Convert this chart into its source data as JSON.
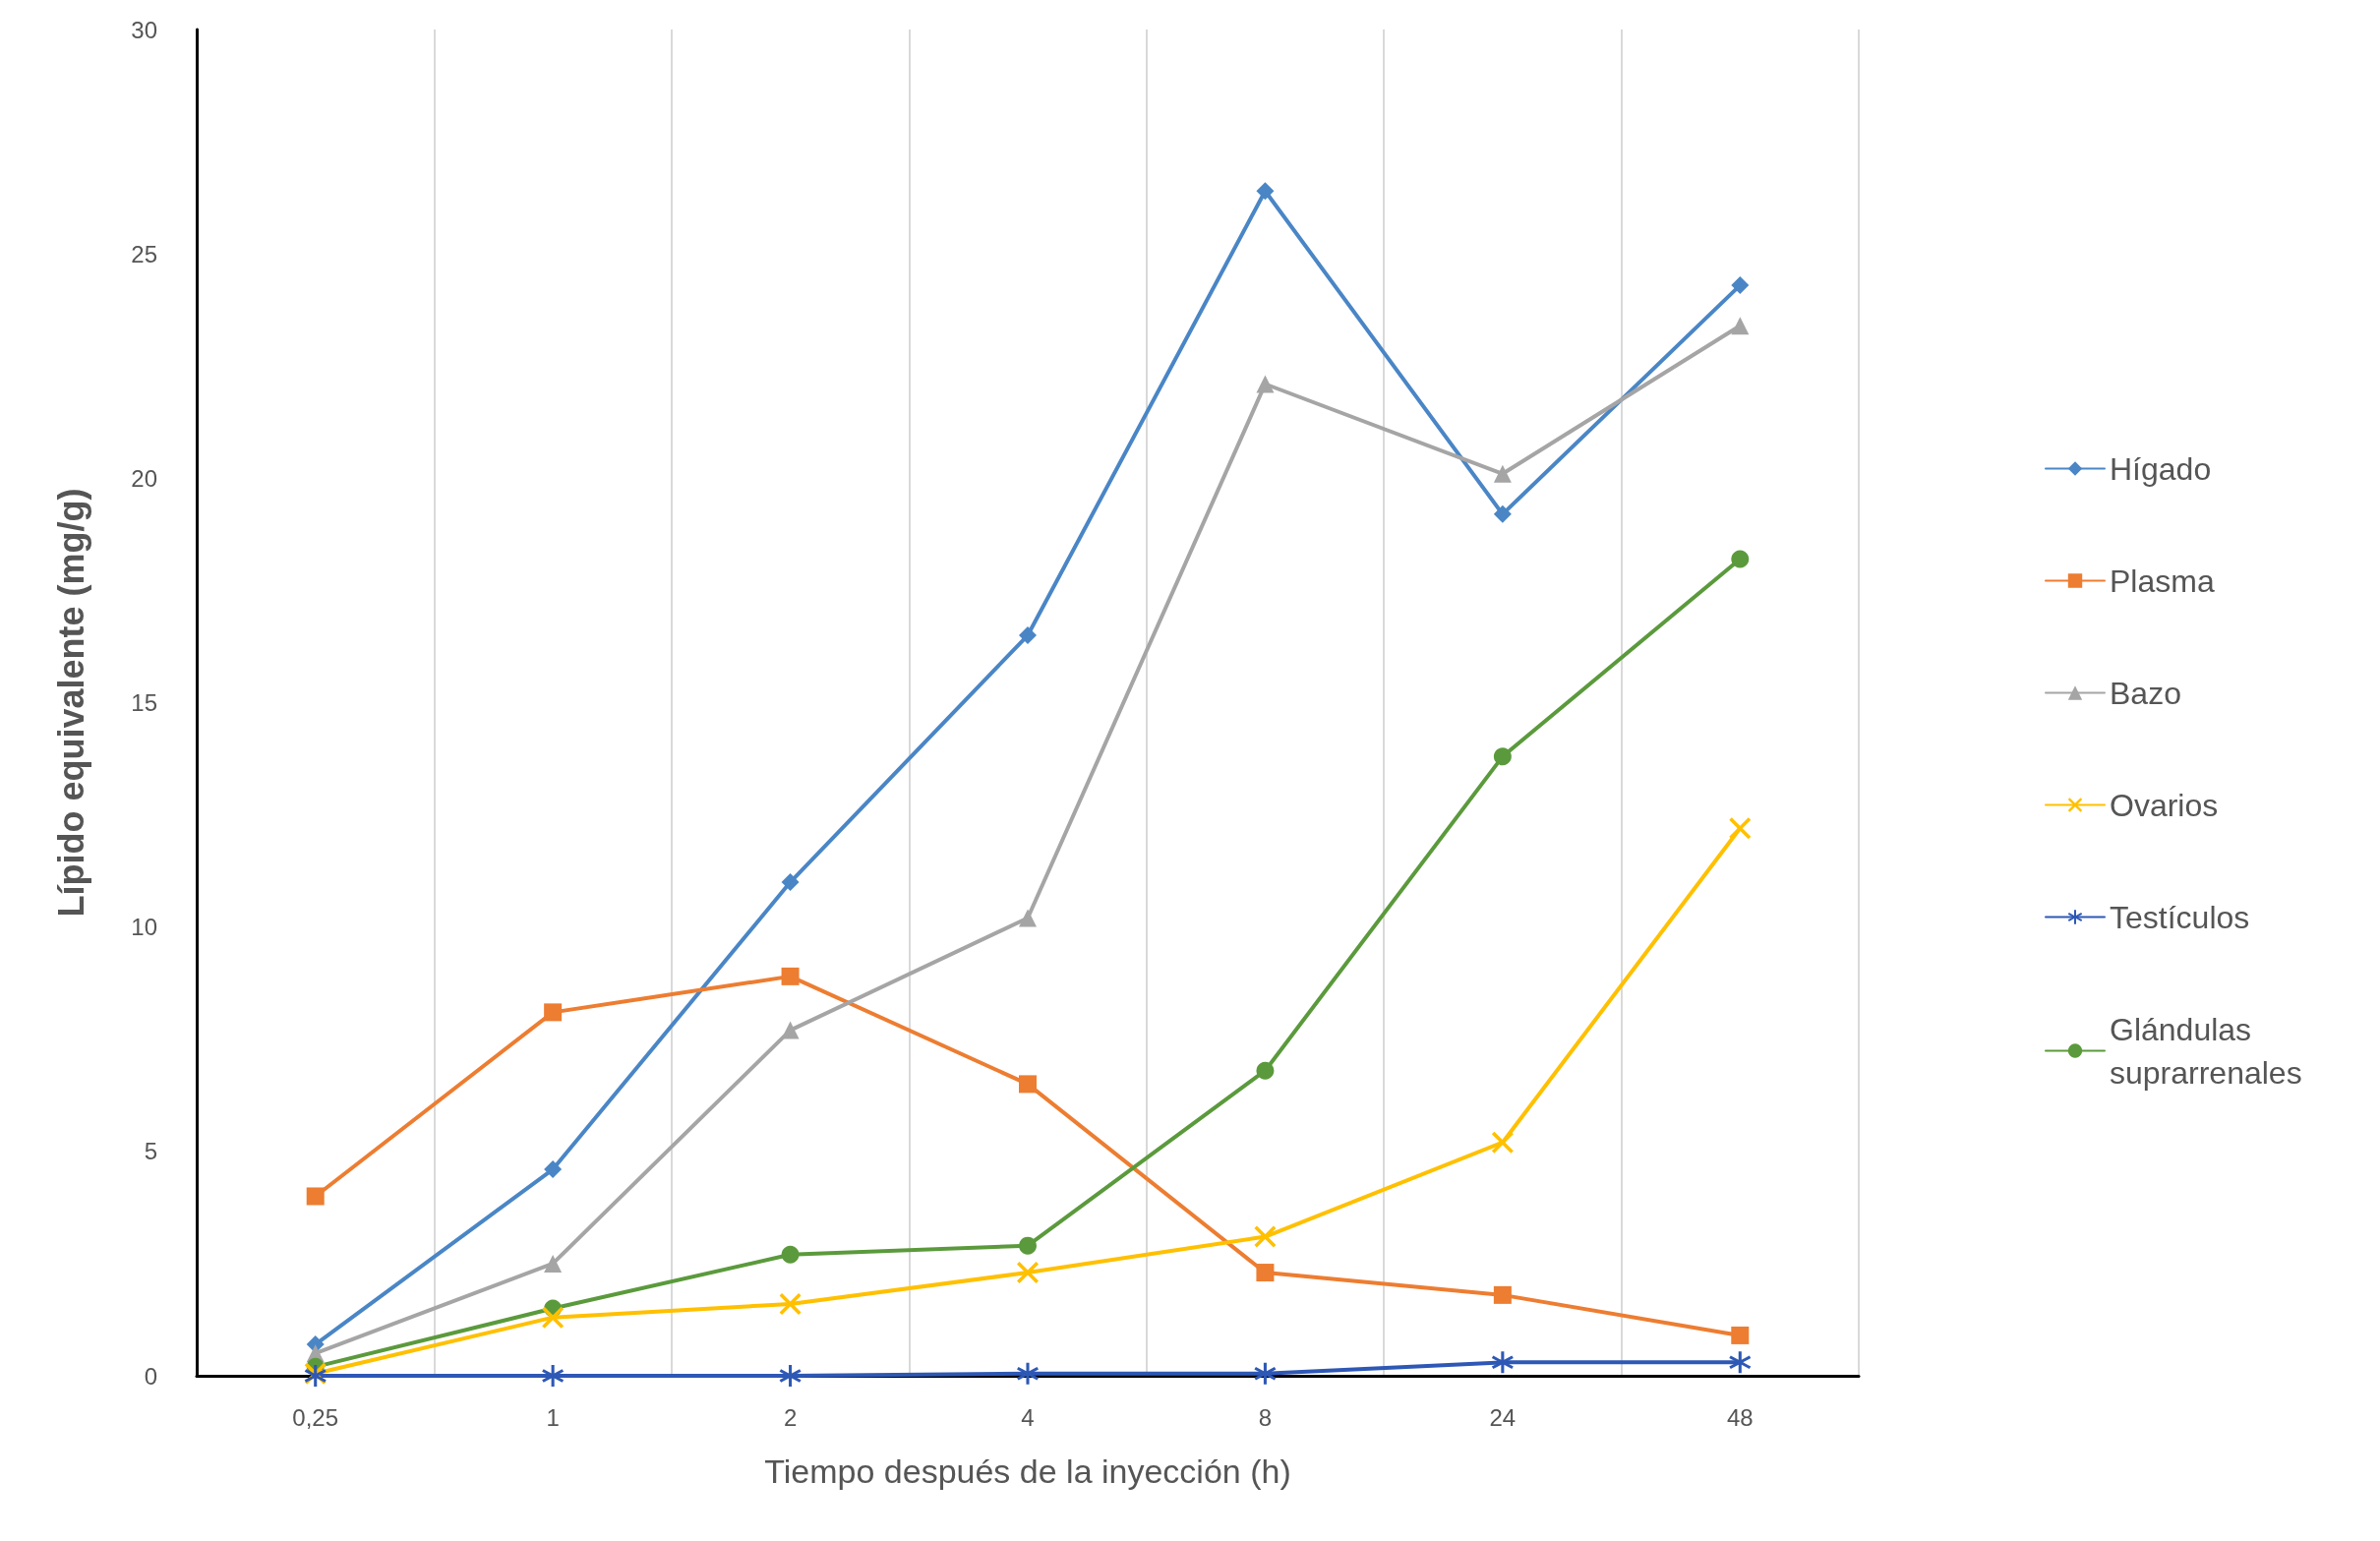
{
  "chart_data": {
    "type": "line",
    "xlabel": "Tiempo después de la inyección (h)",
    "ylabel": "Lípido equivalente (mg/g)",
    "categories": [
      "0,25",
      "1",
      "2",
      "4",
      "8",
      "24",
      "48"
    ],
    "series": [
      {
        "name": "Hígado",
        "color": "#4a86c6",
        "marker": "diamond",
        "values": [
          0.7,
          4.6,
          11.0,
          16.5,
          26.4,
          19.2,
          24.3
        ]
      },
      {
        "name": "Plasma",
        "color": "#ed7d31",
        "marker": "square",
        "values": [
          4.0,
          8.1,
          8.9,
          6.5,
          2.3,
          1.8,
          0.9
        ]
      },
      {
        "name": "Bazo",
        "color": "#a5a5a5",
        "marker": "triangle",
        "values": [
          0.5,
          2.5,
          7.7,
          10.2,
          22.1,
          20.1,
          23.4
        ]
      },
      {
        "name": "Ovarios",
        "color": "#ffc000",
        "marker": "cross",
        "values": [
          0.05,
          1.3,
          1.6,
          2.3,
          3.1,
          5.2,
          12.2
        ]
      },
      {
        "name": "Testículos",
        "color": "#2e58b5",
        "marker": "star",
        "values": [
          0,
          0,
          0,
          0.05,
          0.05,
          0.3,
          0.3
        ]
      },
      {
        "name": "Glándulas suprarrenales",
        "color": "#5b9a3c",
        "marker": "circle",
        "values": [
          0.2,
          1.5,
          2.7,
          2.9,
          6.8,
          13.8,
          18.2
        ]
      }
    ],
    "ylim": [
      0,
      30
    ],
    "yticks": [
      0,
      5,
      10,
      15,
      20,
      25,
      30
    ],
    "grid": "x",
    "legend": "right",
    "line_style": "solid"
  }
}
